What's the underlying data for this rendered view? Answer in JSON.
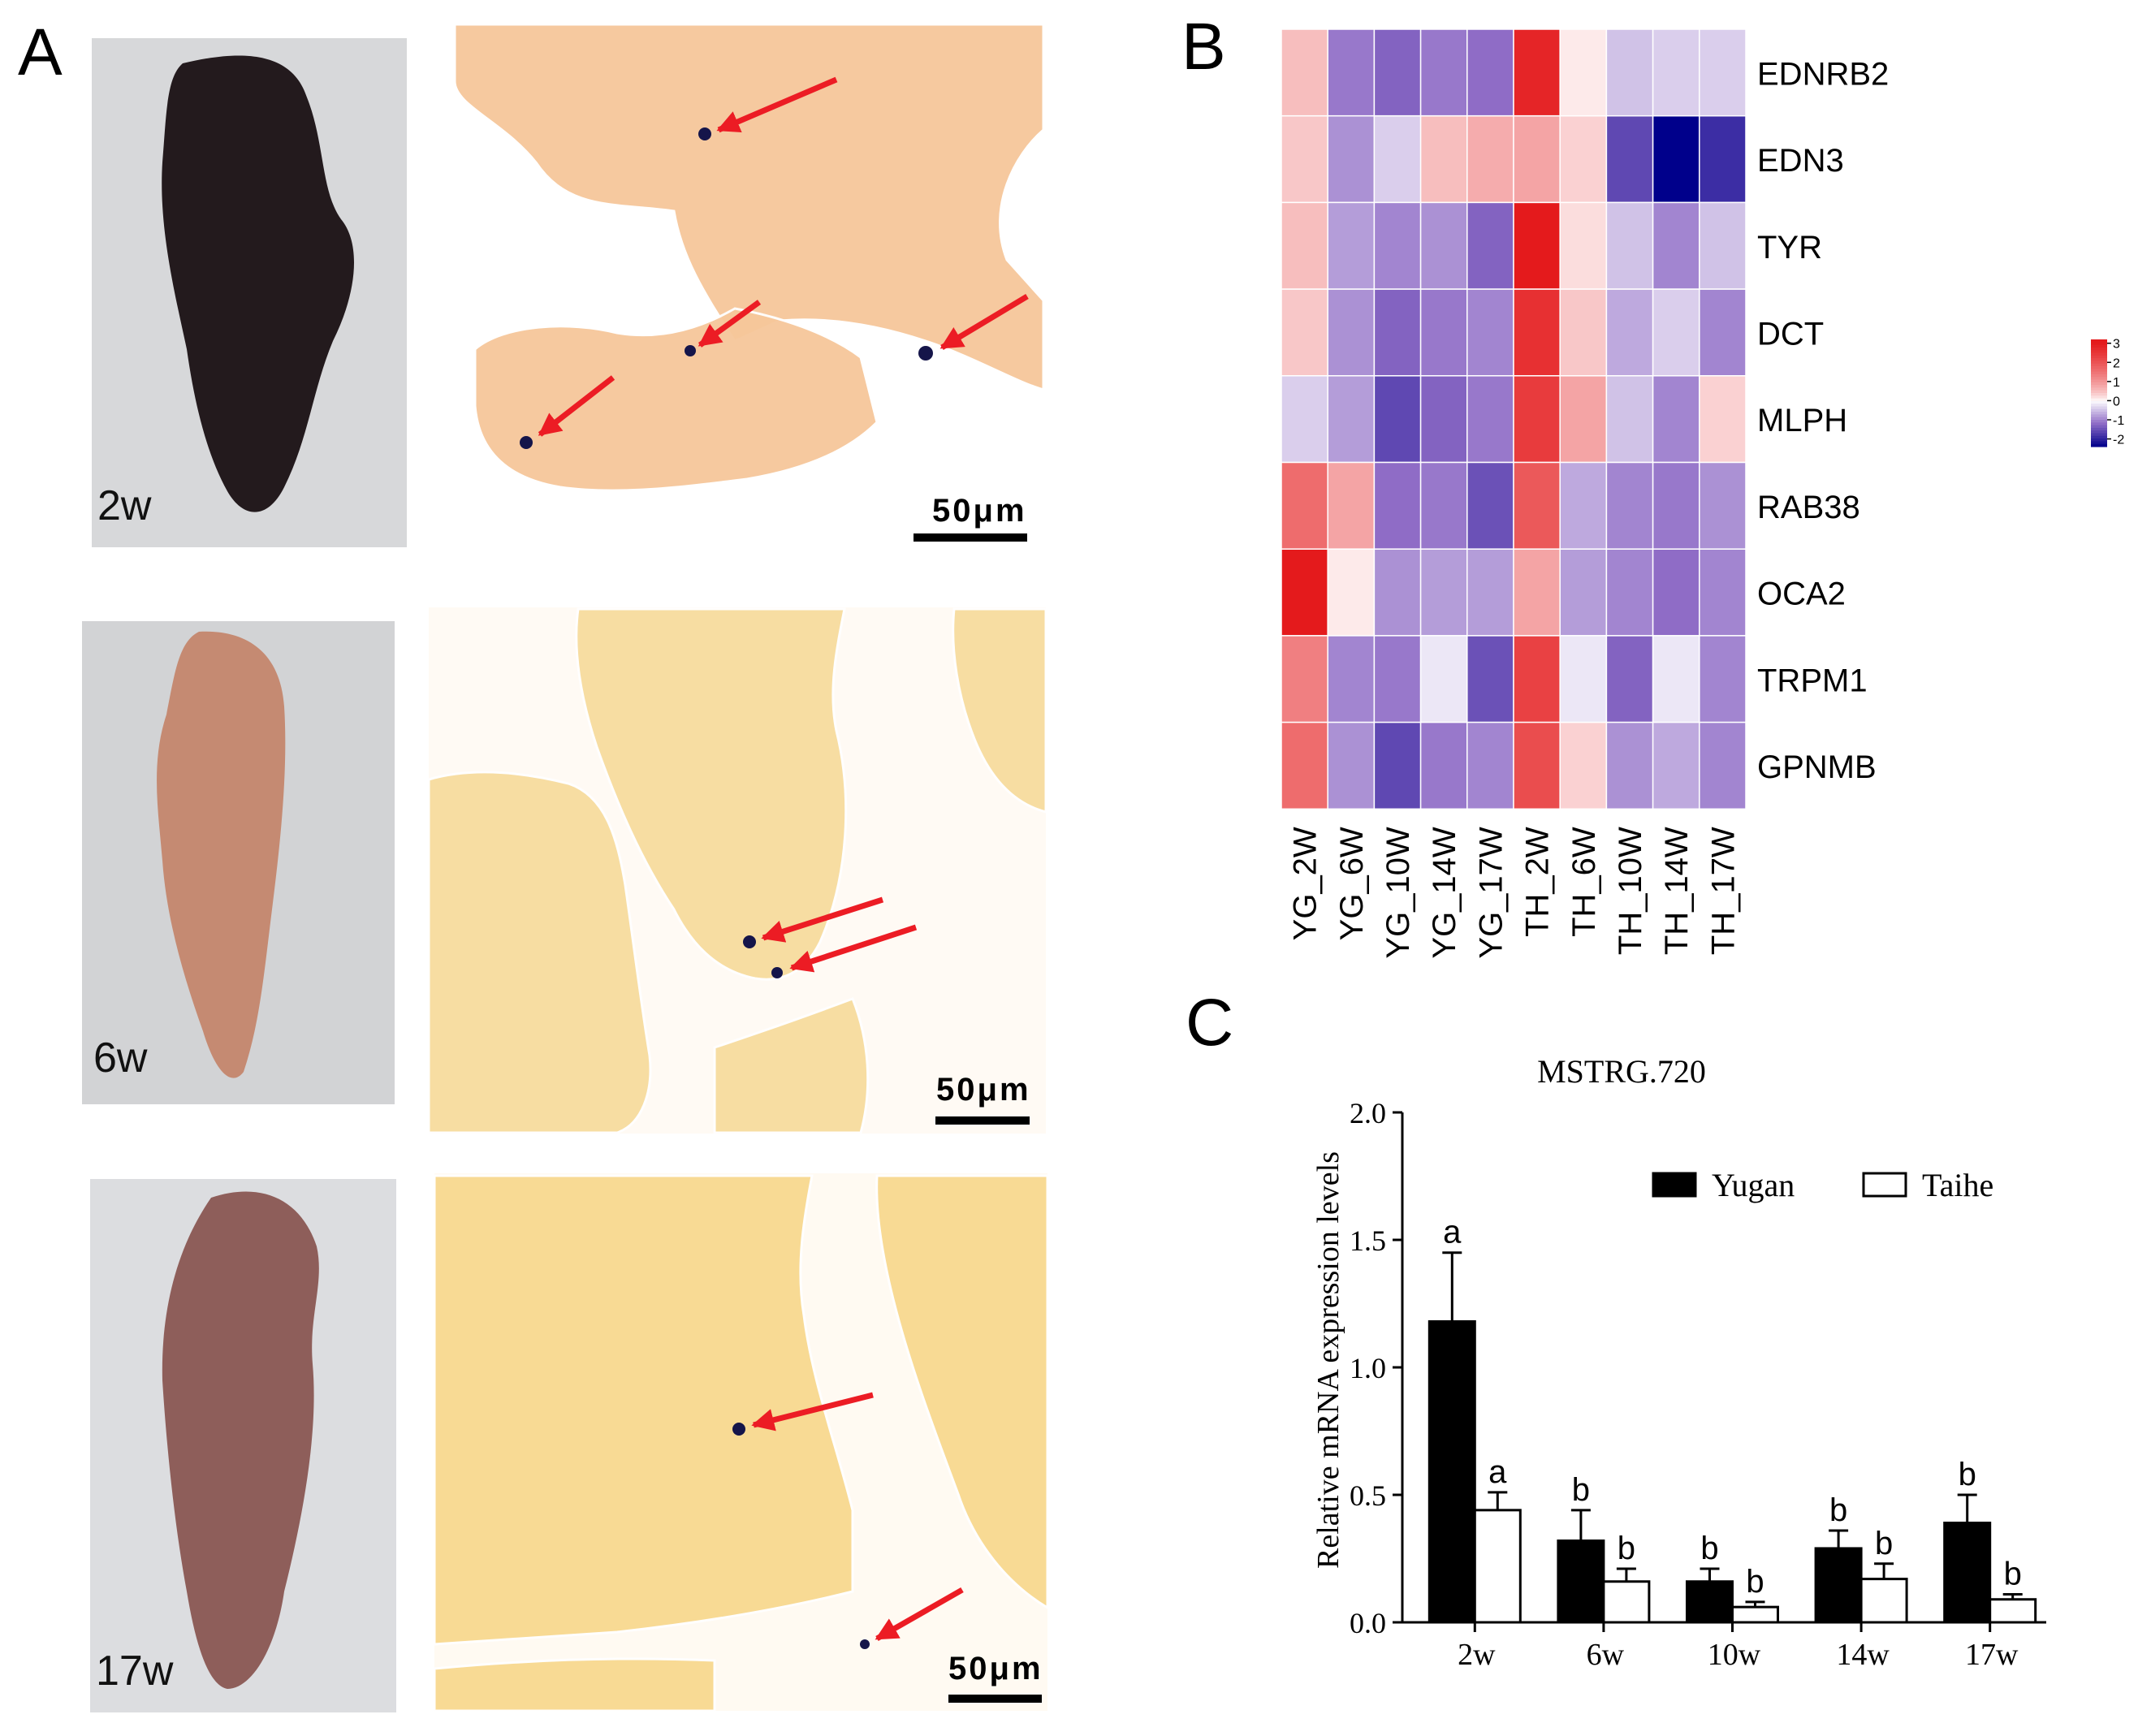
{
  "panels": {
    "a": {
      "letter": "A",
      "rows": [
        {
          "age_label": "2w",
          "scale_label": "50μm",
          "photo_tone": "#231a1d",
          "section_tone": "#f6c79a",
          "arrow_count": 4
        },
        {
          "age_label": "6w",
          "scale_label": "50μm",
          "photo_tone": "#c58a72",
          "section_tone": "#f7dc9e",
          "arrow_count": 2
        },
        {
          "age_label": "17w",
          "scale_label": "50μm",
          "photo_tone": "#8e5e5a",
          "section_tone": "#f8d98f",
          "arrow_count": 2
        }
      ],
      "colors": {
        "arrow": "#ec1c24",
        "background_photo": "#d9d9d9",
        "pigment": "#15154a"
      }
    },
    "b": {
      "letter": "B"
    },
    "c": {
      "letter": "C"
    }
  },
  "chart_data": [
    {
      "type": "heatmap",
      "rows": [
        "EDNRB2",
        "EDN3",
        "TYR",
        "DCT",
        "MLPH",
        "RAB38",
        "OCA2",
        "TRPM1",
        "GPNMB"
      ],
      "columns": [
        "YG_2W",
        "YG_6W",
        "YG_10W",
        "YG_14W",
        "YG_17W",
        "TH_2W",
        "TH_6W",
        "TH_10W",
        "TH_14W",
        "TH_17W"
      ],
      "values": [
        [
          0.5,
          -1.1,
          -1.3,
          -1.1,
          -1.2,
          2.8,
          0.1,
          -0.5,
          -0.4,
          -0.4
        ],
        [
          0.4,
          -0.9,
          -0.4,
          0.5,
          0.7,
          0.8,
          0.3,
          -1.6,
          -2.4,
          -1.9
        ],
        [
          0.5,
          -0.8,
          -1.0,
          -0.9,
          -1.3,
          3.0,
          0.2,
          -0.5,
          -1.0,
          -0.5
        ],
        [
          0.4,
          -0.9,
          -1.3,
          -1.1,
          -1.0,
          2.6,
          0.4,
          -0.7,
          -0.4,
          -1.0
        ],
        [
          -0.4,
          -0.8,
          -1.6,
          -1.3,
          -1.1,
          2.4,
          0.8,
          -0.5,
          -1.0,
          0.3
        ],
        [
          1.6,
          0.8,
          -1.2,
          -1.1,
          -1.5,
          1.9,
          -0.7,
          -1.0,
          -1.1,
          -0.9
        ],
        [
          3.0,
          0.1,
          -0.9,
          -0.8,
          -0.8,
          0.8,
          -0.8,
          -1.0,
          -1.2,
          -1.0
        ],
        [
          1.3,
          -1.0,
          -1.1,
          -0.2,
          -1.5,
          2.3,
          -0.2,
          -1.3,
          -0.2,
          -1.0
        ],
        [
          1.6,
          -0.9,
          -1.6,
          -1.1,
          -1.0,
          2.1,
          0.3,
          -0.9,
          -0.7,
          -1.0
        ]
      ],
      "legend": {
        "ticks": [
          "3",
          "2",
          "1",
          "0",
          "-1",
          "-2"
        ],
        "tick_values": [
          3,
          2,
          1,
          0,
          -1,
          -2
        ],
        "range": [
          -2.4,
          3.2
        ]
      },
      "colors": {
        "high": "#e41a1c",
        "mid": "#ffffff",
        "low": "#00008b",
        "mid_violet": "#8f6cc6"
      }
    },
    {
      "type": "bar",
      "title": "MSTRG.720",
      "ylabel": "Relative  mRNA expression levels",
      "xlabel": "",
      "categories": [
        "2w",
        "6w",
        "10w",
        "14w",
        "17w"
      ],
      "ylim": [
        0,
        2.0
      ],
      "yticks": [
        "0.0",
        "0.5",
        "1.0",
        "1.5",
        "2.0"
      ],
      "ytick_values": [
        0,
        0.5,
        1.0,
        1.5,
        2.0
      ],
      "series": [
        {
          "name": "Yugan",
          "values": [
            1.18,
            0.32,
            0.16,
            0.29,
            0.39
          ],
          "errors": [
            0.27,
            0.12,
            0.05,
            0.07,
            0.11
          ],
          "labels": [
            "a",
            "b",
            "b",
            "b",
            "b"
          ],
          "fill": "#000000"
        },
        {
          "name": "Taihe",
          "values": [
            0.44,
            0.16,
            0.06,
            0.17,
            0.09
          ],
          "errors": [
            0.07,
            0.05,
            0.02,
            0.06,
            0.02
          ],
          "labels": [
            "a",
            "b",
            "b",
            "b",
            "b"
          ],
          "fill": "#ffffff"
        }
      ],
      "legend_position": "top-right"
    }
  ]
}
